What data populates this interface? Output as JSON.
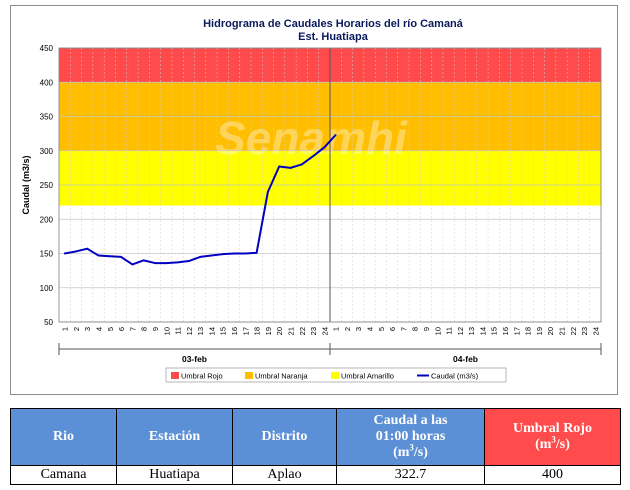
{
  "chart_data": {
    "type": "line",
    "title": "Hidrograma de Caudales Horarios del río Camaná",
    "subtitle": "Est. Huatiapa",
    "ylabel": "Caudal  (m3/s)",
    "ylim": [
      50,
      450
    ],
    "yticks": [
      50,
      100,
      150,
      200,
      250,
      300,
      350,
      400,
      450
    ],
    "grid": true,
    "x_hours": [
      "1",
      "2",
      "3",
      "4",
      "5",
      "6",
      "7",
      "8",
      "9",
      "10",
      "11",
      "12",
      "13",
      "14",
      "15",
      "16",
      "17",
      "18",
      "19",
      "20",
      "21",
      "22",
      "23",
      "24",
      "1",
      "2",
      "3",
      "4",
      "5",
      "6",
      "7",
      "8",
      "9",
      "10",
      "11",
      "12",
      "13",
      "14",
      "15",
      "16",
      "17",
      "18",
      "19",
      "20",
      "21",
      "22",
      "23",
      "24"
    ],
    "days": [
      "03-feb",
      "04-feb"
    ],
    "bands": [
      {
        "name": "Umbral Rojo",
        "from": 400,
        "to": 450,
        "color": "#ff4b4b"
      },
      {
        "name": "Umbral Naranja",
        "from": 300,
        "to": 400,
        "color": "#ffbf00"
      },
      {
        "name": "Umbral Amarillo",
        "from": 220,
        "to": 300,
        "color": "#ffff00"
      }
    ],
    "series": [
      {
        "name": "Caudal (m3/s)",
        "color": "#0000c0",
        "x": [
          1,
          2,
          3,
          4,
          5,
          6,
          7,
          8,
          9,
          10,
          11,
          12,
          13,
          14,
          15,
          16,
          17,
          18,
          19,
          20,
          21,
          22,
          23,
          24,
          25
        ],
        "values": [
          150,
          153,
          157,
          147,
          146,
          145,
          134,
          140,
          136,
          136,
          137,
          139,
          145,
          147,
          149,
          150,
          150,
          151,
          240,
          277,
          275,
          280,
          292,
          305,
          323
        ]
      }
    ],
    "legend": [
      "Umbral Rojo",
      "Umbral Naranja",
      "Umbral Amarillo",
      "Caudal (m3/s)"
    ],
    "legend_position": "bottom",
    "watermark": "Senamhi"
  },
  "table": {
    "headers": {
      "rio": "Rio",
      "estacion": "Estación",
      "distrito": "Distrito",
      "caudal_a": "Caudal a las",
      "caudal_b": "01:00 horas",
      "caudal_c": "(m",
      "caudal_sup": "3",
      "caudal_d": "/s)",
      "umbral_a": "Umbral Rojo",
      "umbral_b": "(m",
      "umbral_sup": "3",
      "umbral_c": "/s)"
    },
    "row": {
      "rio": "Camana",
      "estacion": "Huatiapa",
      "distrito": "Aplao",
      "caudal": "322.7",
      "umbral": "400"
    }
  }
}
